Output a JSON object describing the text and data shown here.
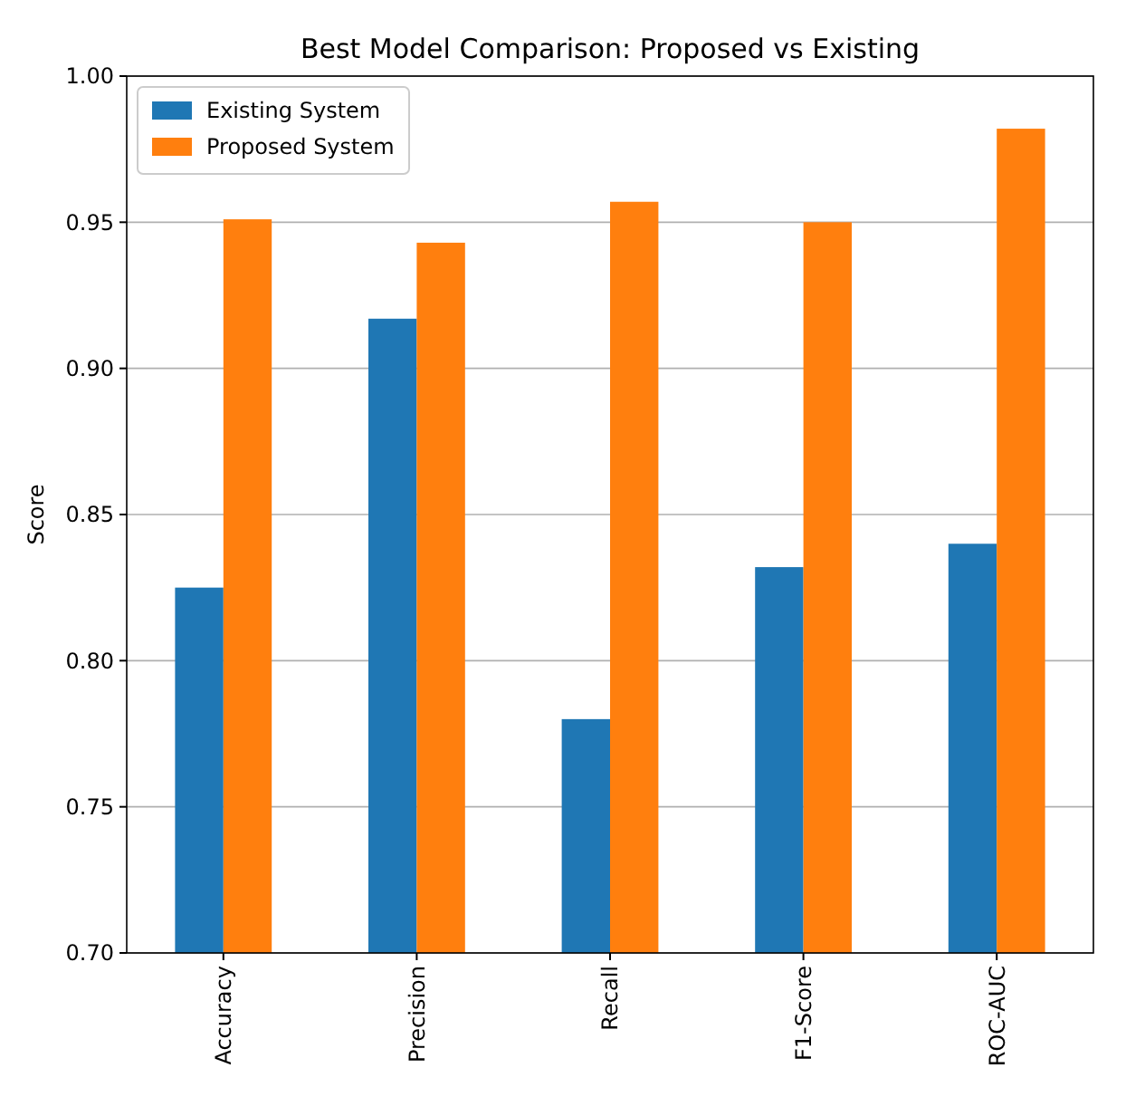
{
  "chart_data": {
    "type": "bar",
    "title": "Best Model Comparison: Proposed vs Existing",
    "ylabel": "Score",
    "categories": [
      "Accuracy",
      "Precision",
      "Recall",
      "F1-Score",
      "ROC-AUC"
    ],
    "series": [
      {
        "name": "Existing System",
        "color": "#1f77b4",
        "values": [
          0.825,
          0.917,
          0.78,
          0.832,
          0.84
        ]
      },
      {
        "name": "Proposed System",
        "color": "#ff7f0e",
        "values": [
          0.951,
          0.943,
          0.957,
          0.95,
          0.982
        ]
      }
    ],
    "ylim": [
      0.7,
      1.0
    ],
    "yticks": [
      {
        "value": 0.7,
        "label": "0.70"
      },
      {
        "value": 0.75,
        "label": "0.75"
      },
      {
        "value": 0.8,
        "label": "0.80"
      },
      {
        "value": 0.85,
        "label": "0.85"
      },
      {
        "value": 0.9,
        "label": "0.90"
      },
      {
        "value": 0.95,
        "label": "0.95"
      },
      {
        "value": 1.0,
        "label": "1.00"
      }
    ],
    "grid": "y",
    "legend": "top left"
  }
}
